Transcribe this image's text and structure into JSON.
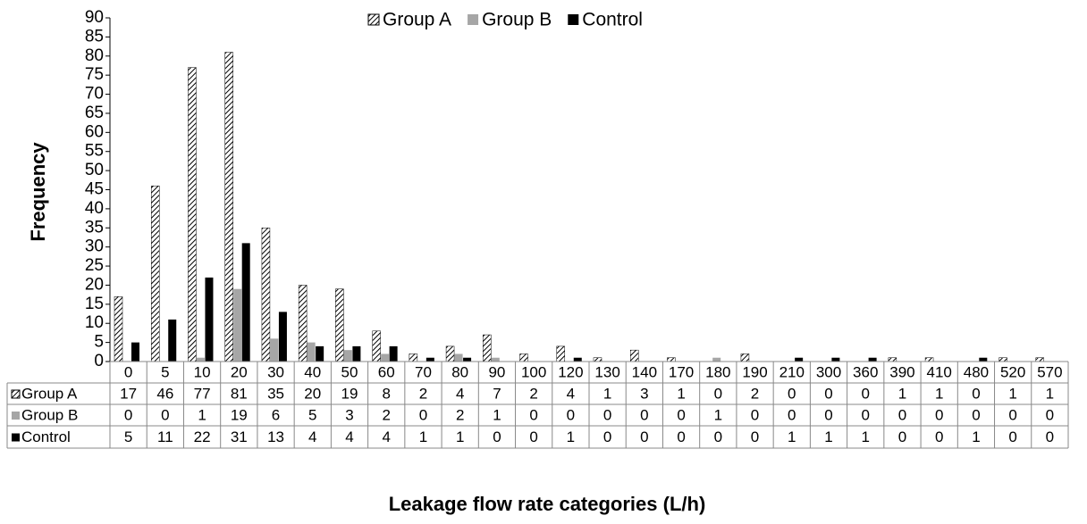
{
  "chart_data": {
    "type": "bar",
    "x_label": "Leakage flow rate categories (L/h)",
    "y_label": "Frequency",
    "categories": [
      "0",
      "5",
      "10",
      "20",
      "30",
      "40",
      "50",
      "60",
      "70",
      "80",
      "90",
      "100",
      "120",
      "130",
      "140",
      "170",
      "180",
      "190",
      "210",
      "300",
      "360",
      "390",
      "410",
      "480",
      "520",
      "570"
    ],
    "series": [
      {
        "name": "Group A",
        "color": "#000000",
        "hatch": true,
        "values": [
          17,
          46,
          77,
          81,
          35,
          20,
          19,
          8,
          2,
          4,
          7,
          2,
          4,
          1,
          3,
          1,
          0,
          2,
          0,
          0,
          0,
          1,
          1,
          0,
          1,
          1
        ]
      },
      {
        "name": "Group B",
        "color": "#a6a6a6",
        "values": [
          0,
          0,
          1,
          19,
          6,
          5,
          3,
          2,
          0,
          2,
          1,
          0,
          0,
          0,
          0,
          0,
          1,
          0,
          0,
          0,
          0,
          0,
          0,
          0,
          0,
          0
        ]
      },
      {
        "name": "Control",
        "color": "#000000",
        "values": [
          5,
          11,
          22,
          31,
          13,
          4,
          4,
          4,
          1,
          1,
          0,
          0,
          1,
          0,
          0,
          0,
          0,
          0,
          1,
          1,
          1,
          0,
          0,
          1,
          0,
          0
        ]
      }
    ],
    "ylim": [
      0,
      90
    ],
    "yticks": [
      0,
      5,
      10,
      15,
      20,
      25,
      30,
      35,
      40,
      45,
      50,
      55,
      60,
      65,
      70,
      75,
      80,
      85,
      90
    ],
    "legend": "top",
    "data_table": true
  }
}
